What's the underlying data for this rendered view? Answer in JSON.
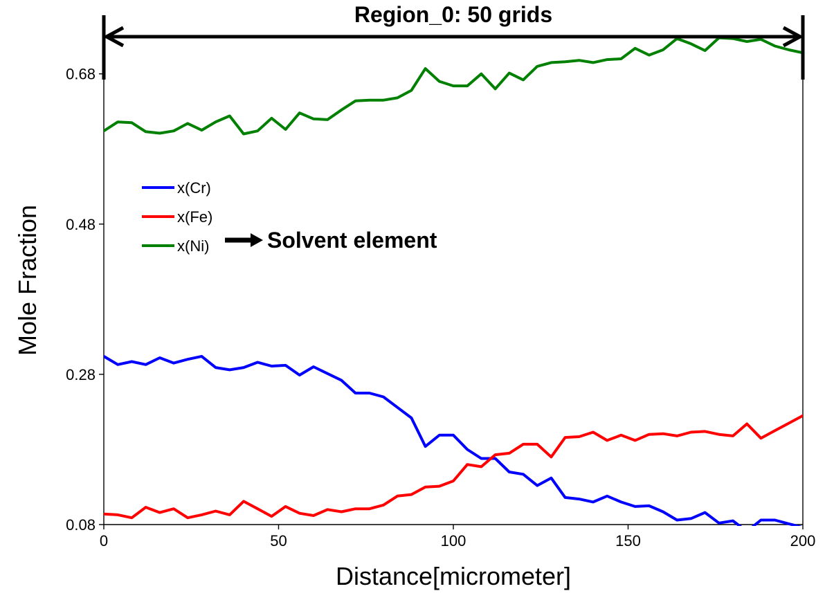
{
  "chart_data": {
    "type": "line",
    "xlabel": "Distance[micrometer]",
    "ylabel": "Mole Fraction",
    "xlim": [
      0,
      200
    ],
    "ylim": [
      0.08,
      0.7
    ],
    "x_ticks": [
      0,
      50,
      100,
      150,
      200
    ],
    "x_tick_labels": [
      "0",
      "50",
      "100",
      "150",
      "200"
    ],
    "y_ticks": [
      0.08,
      0.28,
      0.48,
      0.68
    ],
    "y_tick_labels": [
      "0.08",
      "0.28",
      "0.48",
      "0.68"
    ],
    "grid": false,
    "legend_placement": "left-middle",
    "series": [
      {
        "name": "x(Cr)",
        "color": "#0000ff",
        "x": [
          0,
          4,
          8,
          12,
          16,
          20,
          24,
          28,
          32,
          36,
          40,
          44,
          48,
          52,
          56,
          60,
          64,
          68,
          72,
          76,
          80,
          84,
          88,
          92,
          96,
          100,
          104,
          108,
          112,
          116,
          120,
          124,
          128,
          132,
          136,
          140,
          144,
          148,
          152,
          156,
          160,
          164,
          168,
          172,
          176,
          180,
          184,
          188,
          192,
          196,
          200
        ],
        "values": [
          0.304,
          0.293,
          0.297,
          0.293,
          0.302,
          0.295,
          0.3,
          0.304,
          0.289,
          0.286,
          0.289,
          0.296,
          0.291,
          0.292,
          0.279,
          0.29,
          0.281,
          0.272,
          0.255,
          0.255,
          0.25,
          0.236,
          0.222,
          0.184,
          0.199,
          0.199,
          0.18,
          0.168,
          0.168,
          0.15,
          0.147,
          0.132,
          0.142,
          0.116,
          0.114,
          0.11,
          0.118,
          0.11,
          0.104,
          0.105,
          0.097,
          0.086,
          0.088,
          0.096,
          0.082,
          0.085,
          0.071,
          0.086,
          0.086,
          0.081,
          0.076
        ]
      },
      {
        "name": "x(Fe)",
        "color": "#ff0000",
        "x": [
          0,
          4,
          8,
          12,
          16,
          20,
          24,
          28,
          32,
          36,
          40,
          44,
          48,
          52,
          56,
          60,
          64,
          68,
          72,
          76,
          80,
          84,
          88,
          92,
          96,
          100,
          104,
          108,
          112,
          116,
          120,
          124,
          128,
          132,
          136,
          140,
          144,
          148,
          152,
          156,
          160,
          164,
          168,
          172,
          176,
          180,
          184,
          188,
          192,
          196,
          200
        ],
        "values": [
          0.094,
          0.093,
          0.089,
          0.103,
          0.096,
          0.101,
          0.089,
          0.093,
          0.098,
          0.093,
          0.111,
          0.101,
          0.091,
          0.104,
          0.095,
          0.092,
          0.1,
          0.097,
          0.101,
          0.101,
          0.106,
          0.118,
          0.12,
          0.13,
          0.131,
          0.138,
          0.16,
          0.157,
          0.173,
          0.175,
          0.187,
          0.187,
          0.17,
          0.196,
          0.197,
          0.203,
          0.192,
          0.199,
          0.192,
          0.2,
          0.201,
          0.198,
          0.203,
          0.204,
          0.2,
          0.198,
          0.214,
          0.195,
          0.205,
          0.215,
          0.225
        ]
      },
      {
        "name": "x(Ni)",
        "color": "#008000",
        "x": [
          0,
          4,
          8,
          12,
          16,
          20,
          24,
          28,
          32,
          36,
          40,
          44,
          48,
          52,
          56,
          60,
          64,
          68,
          72,
          76,
          80,
          84,
          88,
          92,
          96,
          100,
          104,
          108,
          112,
          116,
          120,
          124,
          128,
          132,
          136,
          140,
          144,
          148,
          152,
          156,
          160,
          164,
          168,
          172,
          176,
          180,
          184,
          188,
          192,
          196,
          200
        ],
        "values": [
          0.604,
          0.616,
          0.615,
          0.603,
          0.601,
          0.604,
          0.614,
          0.605,
          0.616,
          0.624,
          0.6,
          0.604,
          0.621,
          0.606,
          0.628,
          0.62,
          0.619,
          0.632,
          0.644,
          0.645,
          0.645,
          0.648,
          0.658,
          0.687,
          0.67,
          0.664,
          0.664,
          0.68,
          0.66,
          0.681,
          0.672,
          0.69,
          0.695,
          0.696,
          0.698,
          0.695,
          0.699,
          0.7,
          0.714,
          0.705,
          0.712,
          0.727,
          0.72,
          0.711,
          0.728,
          0.727,
          0.723,
          0.726,
          0.717,
          0.712,
          0.708
        ]
      }
    ],
    "annotations": {
      "region_label": "Region_0: 50 grids",
      "solvent_label": "Solvent element"
    }
  }
}
